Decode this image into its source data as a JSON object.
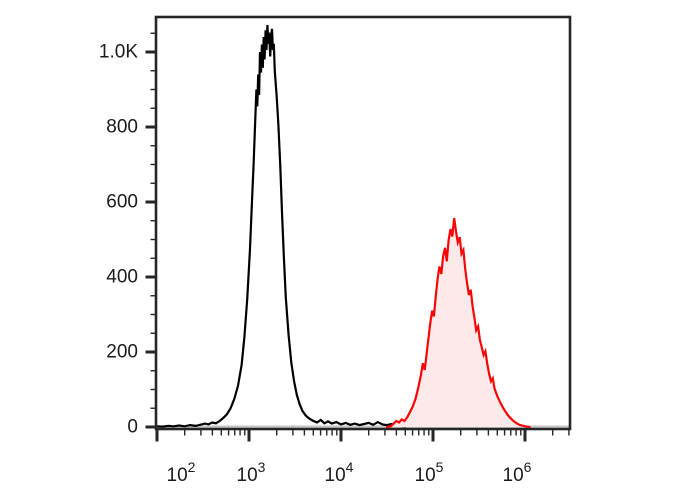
{
  "figure": {
    "kind": "flow-cytometry-histogram-overlay",
    "background": "#ffffff"
  },
  "chart_data": {
    "type": "area",
    "title": "",
    "xlabel": "",
    "ylabel": "",
    "x_scale": "log10",
    "x_range_log10": [
      1.99,
      6.49
    ],
    "ylim": [
      0,
      1093
    ],
    "grid": false,
    "legend": "none",
    "axis_color": "#262626",
    "text_color": "#1b1b1b",
    "baseline_color": "#c6c6c6",
    "x_axis": {
      "major_exponents": [
        2,
        3,
        4,
        5,
        6
      ],
      "labels": [
        {
          "base": "10",
          "exp": "2"
        },
        {
          "base": "10",
          "exp": "3"
        },
        {
          "base": "10",
          "exp": "4"
        },
        {
          "base": "10",
          "exp": "5"
        },
        {
          "base": "10",
          "exp": "6"
        }
      ]
    },
    "y_axis": {
      "major_values": [
        0,
        200,
        400,
        600,
        800,
        1000
      ],
      "labels": [
        "0",
        "200",
        "400",
        "600",
        "800",
        "1.0K"
      ],
      "minor_step": 50,
      "minor_max": 1050
    },
    "series": [
      {
        "name": "black-outline-histogram",
        "peak_x": 1600,
        "peak_count": 1072,
        "stroke": "#000000",
        "fill": "none",
        "points": [
          [
            1.99,
            2
          ],
          [
            2.06,
            1
          ],
          [
            2.12,
            3
          ],
          [
            2.18,
            2
          ],
          [
            2.24,
            4
          ],
          [
            2.3,
            2
          ],
          [
            2.36,
            5
          ],
          [
            2.42,
            3
          ],
          [
            2.47,
            6
          ],
          [
            2.52,
            9
          ],
          [
            2.56,
            7
          ],
          [
            2.6,
            12
          ],
          [
            2.64,
            10
          ],
          [
            2.68,
            16
          ],
          [
            2.72,
            24
          ],
          [
            2.76,
            34
          ],
          [
            2.8,
            50
          ],
          [
            2.84,
            75
          ],
          [
            2.88,
            110
          ],
          [
            2.92,
            165
          ],
          [
            2.95,
            240
          ],
          [
            2.98,
            340
          ],
          [
            3.01,
            470
          ],
          [
            3.03,
            590
          ],
          [
            3.05,
            700
          ],
          [
            3.07,
            830
          ],
          [
            3.08,
            900
          ],
          [
            3.09,
            855
          ],
          [
            3.1,
            940
          ],
          [
            3.11,
            885
          ],
          [
            3.12,
            1000
          ],
          [
            3.13,
            945
          ],
          [
            3.14,
            1020
          ],
          [
            3.15,
            958
          ],
          [
            3.16,
            1040
          ],
          [
            3.17,
            980
          ],
          [
            3.18,
            1058
          ],
          [
            3.19,
            1005
          ],
          [
            3.2,
            1072
          ],
          [
            3.21,
            1022
          ],
          [
            3.22,
            1052
          ],
          [
            3.23,
            988
          ],
          [
            3.24,
            1038
          ],
          [
            3.25,
            1062
          ],
          [
            3.26,
            1005
          ],
          [
            3.27,
            1022
          ],
          [
            3.28,
            948
          ],
          [
            3.3,
            885
          ],
          [
            3.32,
            805
          ],
          [
            3.34,
            695
          ],
          [
            3.36,
            565
          ],
          [
            3.38,
            445
          ],
          [
            3.4,
            345
          ],
          [
            3.43,
            245
          ],
          [
            3.46,
            172
          ],
          [
            3.49,
            122
          ],
          [
            3.52,
            86
          ],
          [
            3.55,
            61
          ],
          [
            3.58,
            43
          ],
          [
            3.62,
            30
          ],
          [
            3.66,
            22
          ],
          [
            3.7,
            16
          ],
          [
            3.74,
            12
          ],
          [
            3.78,
            19
          ],
          [
            3.82,
            10
          ],
          [
            3.86,
            15
          ],
          [
            3.9,
            9
          ],
          [
            3.95,
            13
          ],
          [
            4.0,
            7
          ],
          [
            4.05,
            11
          ],
          [
            4.1,
            6
          ],
          [
            4.15,
            9
          ],
          [
            4.2,
            5
          ],
          [
            4.25,
            8
          ],
          [
            4.3,
            11
          ],
          [
            4.35,
            6
          ],
          [
            4.4,
            13
          ],
          [
            4.45,
            7
          ],
          [
            4.5,
            5
          ],
          [
            4.55,
            8
          ],
          [
            4.6,
            4
          ],
          [
            4.65,
            3
          ],
          [
            4.7,
            2
          ]
        ]
      },
      {
        "name": "red-filled-histogram",
        "peak_x": 170000,
        "peak_count": 557,
        "stroke": "#fa0505",
        "fill": "#fce9e9",
        "points": [
          [
            4.5,
            0
          ],
          [
            4.54,
            2
          ],
          [
            4.57,
            8
          ],
          [
            4.6,
            16
          ],
          [
            4.63,
            12
          ],
          [
            4.66,
            20
          ],
          [
            4.69,
            16
          ],
          [
            4.72,
            26
          ],
          [
            4.75,
            40
          ],
          [
            4.78,
            55
          ],
          [
            4.81,
            75
          ],
          [
            4.84,
            105
          ],
          [
            4.87,
            140
          ],
          [
            4.89,
            170
          ],
          [
            4.91,
            152
          ],
          [
            4.93,
            195
          ],
          [
            4.95,
            235
          ],
          [
            4.97,
            275
          ],
          [
            4.99,
            310
          ],
          [
            5.01,
            295
          ],
          [
            5.03,
            350
          ],
          [
            5.05,
            395
          ],
          [
            5.07,
            428
          ],
          [
            5.09,
            408
          ],
          [
            5.11,
            455
          ],
          [
            5.13,
            478
          ],
          [
            5.15,
            442
          ],
          [
            5.17,
            498
          ],
          [
            5.19,
            528
          ],
          [
            5.21,
            508
          ],
          [
            5.23,
            557
          ],
          [
            5.25,
            522
          ],
          [
            5.27,
            492
          ],
          [
            5.29,
            506
          ],
          [
            5.31,
            462
          ],
          [
            5.33,
            472
          ],
          [
            5.35,
            422
          ],
          [
            5.37,
            385
          ],
          [
            5.39,
            352
          ],
          [
            5.41,
            366
          ],
          [
            5.43,
            322
          ],
          [
            5.45,
            292
          ],
          [
            5.47,
            258
          ],
          [
            5.49,
            268
          ],
          [
            5.51,
            232
          ],
          [
            5.53,
            212
          ],
          [
            5.55,
            192
          ],
          [
            5.57,
            202
          ],
          [
            5.59,
            168
          ],
          [
            5.61,
            142
          ],
          [
            5.63,
            122
          ],
          [
            5.65,
            130
          ],
          [
            5.67,
            102
          ],
          [
            5.7,
            82
          ],
          [
            5.73,
            66
          ],
          [
            5.76,
            52
          ],
          [
            5.79,
            40
          ],
          [
            5.82,
            30
          ],
          [
            5.85,
            22
          ],
          [
            5.88,
            15
          ],
          [
            5.91,
            10
          ],
          [
            5.94,
            6
          ],
          [
            5.97,
            4
          ],
          [
            6.0,
            2
          ],
          [
            6.05,
            0
          ]
        ]
      }
    ]
  }
}
